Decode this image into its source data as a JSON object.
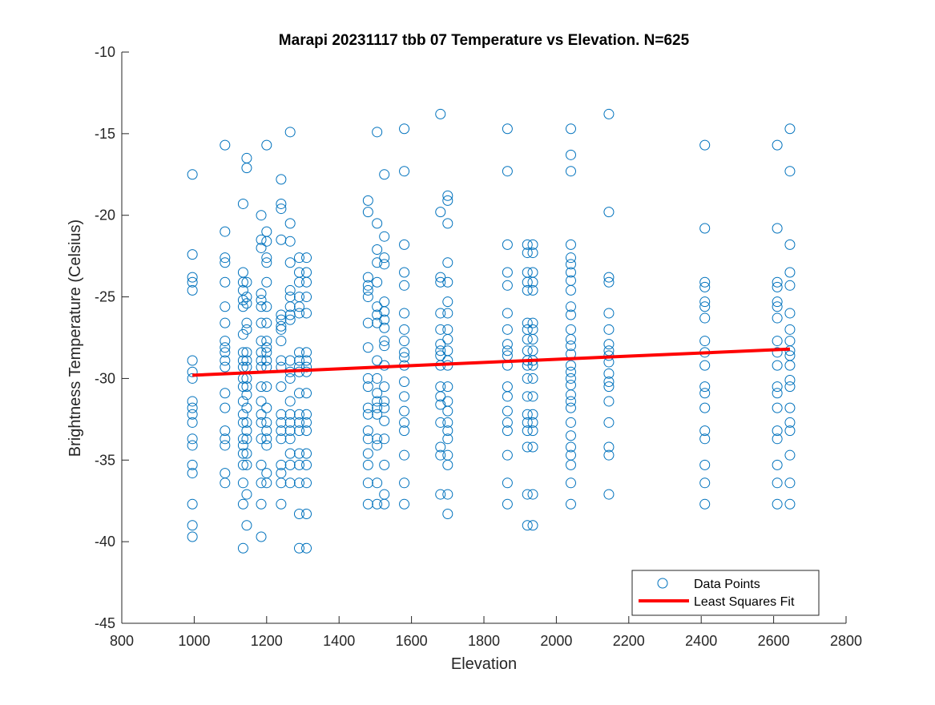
{
  "chart_data": {
    "type": "scatter",
    "title": "Marapi 20231117 tbb 07 Temperature vs Elevation. N=625",
    "xlabel": "Elevation",
    "ylabel": "Brightness Temperature (Celsius)",
    "xlim": [
      800,
      2800
    ],
    "ylim": [
      -45,
      -10
    ],
    "xticks": [
      800,
      1000,
      1200,
      1400,
      1600,
      1800,
      2000,
      2200,
      2400,
      2600,
      2800
    ],
    "yticks": [
      -45,
      -40,
      -35,
      -30,
      -25,
      -20,
      -15,
      -10
    ],
    "grid": false,
    "legend_position": "bottom-right",
    "colors": {
      "points": "#0072BD",
      "fit": "#FF0000"
    },
    "series": [
      {
        "name": "Data Points",
        "kind": "scatter",
        "columns": [
          {
            "x": 995,
            "y": [
              -17.5,
              -22.4,
              -23.8,
              -24.1,
              -24.6,
              -28.9,
              -29.6,
              -30.0,
              -31.4,
              -31.8,
              -32.2,
              -32.7,
              -33.7,
              -34.1,
              -35.3,
              -35.8,
              -37.7,
              -39.0,
              -39.7
            ]
          },
          {
            "x": 1085,
            "y": [
              -15.7,
              -21.0,
              -22.6,
              -22.9,
              -24.1,
              -25.6,
              -26.6,
              -27.7,
              -28.1,
              -28.4,
              -28.9,
              -29.3,
              -30.9,
              -31.8,
              -33.2,
              -33.7,
              -34.1,
              -35.8,
              -36.4
            ]
          },
          {
            "x": 1135,
            "y": [
              -19.3,
              -23.5,
              -24.1,
              -24.6,
              -25.2,
              -25.6,
              -27.3,
              -28.4,
              -28.9,
              -29.3,
              -30.0,
              -30.5,
              -31.4,
              -32.2,
              -32.7,
              -33.7,
              -34.1,
              -34.6,
              -35.3,
              -36.4,
              -37.7,
              -40.4
            ]
          },
          {
            "x": 1145,
            "y": [
              -16.5,
              -17.1,
              -24.1,
              -25.0,
              -25.4,
              -26.6,
              -27.0,
              -28.4,
              -28.9,
              -29.3,
              -30.0,
              -30.5,
              -31.0,
              -31.8,
              -32.7,
              -33.2,
              -33.7,
              -34.6,
              -35.3,
              -37.1,
              -39.0
            ]
          },
          {
            "x": 1185,
            "y": [
              -20.0,
              -21.5,
              -22.0,
              -24.8,
              -25.2,
              -25.6,
              -26.6,
              -27.7,
              -28.4,
              -28.9,
              -29.3,
              -30.5,
              -31.4,
              -32.2,
              -32.7,
              -33.7,
              -35.3,
              -36.4,
              -37.7,
              -39.7
            ]
          },
          {
            "x": 1200,
            "y": [
              -15.7,
              -21.0,
              -21.6,
              -22.6,
              -22.9,
              -24.1,
              -25.6,
              -26.6,
              -27.7,
              -28.1,
              -28.4,
              -28.9,
              -29.3,
              -30.5,
              -31.8,
              -32.7,
              -33.2,
              -33.7,
              -34.1,
              -35.8,
              -36.4
            ]
          },
          {
            "x": 1240,
            "y": [
              -17.8,
              -19.3,
              -19.6,
              -21.5,
              -26.1,
              -26.4,
              -26.8,
              -27.0,
              -27.7,
              -28.9,
              -29.3,
              -30.5,
              -32.2,
              -32.7,
              -33.2,
              -33.7,
              -35.3,
              -35.8,
              -36.4,
              -37.7
            ]
          },
          {
            "x": 1265,
            "y": [
              -14.9,
              -20.5,
              -21.6,
              -22.9,
              -24.6,
              -25.0,
              -25.6,
              -26.1,
              -26.4,
              -28.9,
              -29.6,
              -30.0,
              -31.4,
              -32.2,
              -32.7,
              -33.2,
              -33.7,
              -34.6,
              -35.3,
              -36.4
            ]
          },
          {
            "x": 1290,
            "y": [
              -22.6,
              -23.5,
              -24.1,
              -25.0,
              -25.6,
              -26.0,
              -28.4,
              -28.9,
              -29.3,
              -29.6,
              -30.9,
              -32.2,
              -32.7,
              -33.2,
              -34.6,
              -35.3,
              -36.4,
              -38.3,
              -40.4
            ]
          },
          {
            "x": 1310,
            "y": [
              -22.6,
              -23.5,
              -24.1,
              -25.0,
              -26.0,
              -28.4,
              -28.9,
              -29.3,
              -29.6,
              -30.9,
              -32.2,
              -32.7,
              -33.2,
              -34.6,
              -35.3,
              -36.4,
              -38.3,
              -40.4
            ]
          },
          {
            "x": 1480,
            "y": [
              -19.1,
              -19.8,
              -23.8,
              -24.3,
              -24.6,
              -25.0,
              -26.6,
              -28.1,
              -30.0,
              -30.5,
              -31.8,
              -32.2,
              -33.2,
              -33.7,
              -34.6,
              -35.3,
              -36.4,
              -37.7
            ]
          },
          {
            "x": 1505,
            "y": [
              -14.9,
              -20.5,
              -22.1,
              -22.9,
              -24.1,
              -25.6,
              -26.1,
              -26.6,
              -28.9,
              -30.0,
              -30.9,
              -31.4,
              -31.8,
              -32.2,
              -33.7,
              -34.1,
              -36.4,
              -37.7
            ]
          },
          {
            "x": 1525,
            "y": [
              -17.5,
              -21.3,
              -22.6,
              -23.0,
              -25.3,
              -25.9,
              -26.4,
              -26.9,
              -27.7,
              -28.0,
              -29.2,
              -30.5,
              -31.4,
              -31.8,
              -32.6,
              -33.7,
              -35.3,
              -37.1,
              -37.7
            ]
          },
          {
            "x": 1580,
            "y": [
              -14.7,
              -17.3,
              -21.8,
              -23.5,
              -24.3,
              -26.0,
              -27.0,
              -27.7,
              -28.4,
              -28.7,
              -29.2,
              -30.2,
              -31.1,
              -32.0,
              -32.7,
              -33.2,
              -34.7,
              -36.4,
              -37.7
            ]
          },
          {
            "x": 1680,
            "y": [
              -13.8,
              -19.8,
              -23.8,
              -24.1,
              -26.0,
              -27.0,
              -27.9,
              -28.3,
              -28.6,
              -29.2,
              -30.5,
              -31.1,
              -31.6,
              -32.7,
              -34.2,
              -34.7,
              -37.1
            ]
          },
          {
            "x": 1700,
            "y": [
              -18.8,
              -19.1,
              -20.5,
              -22.9,
              -24.1,
              -25.3,
              -26.0,
              -27.0,
              -27.6,
              -28.3,
              -28.9,
              -29.2,
              -30.5,
              -31.4,
              -32.0,
              -32.7,
              -33.2,
              -33.7,
              -34.7,
              -35.3,
              -37.1,
              -38.3
            ]
          },
          {
            "x": 1865,
            "y": [
              -14.7,
              -17.3,
              -21.8,
              -23.5,
              -24.3,
              -26.0,
              -27.0,
              -27.9,
              -28.3,
              -28.6,
              -29.2,
              -30.5,
              -31.1,
              -32.0,
              -32.7,
              -33.2,
              -34.7,
              -36.4,
              -37.7
            ]
          },
          {
            "x": 1920,
            "y": [
              -21.8,
              -22.3,
              -23.5,
              -24.1,
              -24.6,
              -26.6,
              -27.0,
              -27.6,
              -28.3,
              -28.9,
              -29.2,
              -30.0,
              -31.1,
              -32.2,
              -32.7,
              -33.2,
              -34.2,
              -37.1,
              -39.0
            ]
          },
          {
            "x": 1935,
            "y": [
              -21.8,
              -22.3,
              -23.5,
              -24.1,
              -24.6,
              -26.6,
              -27.0,
              -27.6,
              -28.3,
              -28.9,
              -29.2,
              -30.0,
              -31.1,
              -32.2,
              -32.7,
              -33.2,
              -34.2,
              -37.1,
              -39.0
            ]
          },
          {
            "x": 2040,
            "y": [
              -14.7,
              -16.3,
              -17.3,
              -21.8,
              -22.6,
              -23.0,
              -23.5,
              -24.0,
              -24.6,
              -25.6,
              -26.1,
              -27.0,
              -27.6,
              -28.0,
              -28.5,
              -29.2,
              -29.6,
              -30.0,
              -30.4,
              -31.0,
              -31.4,
              -31.8,
              -32.7,
              -33.5,
              -34.2,
              -34.7,
              -35.3,
              -36.4,
              -37.7
            ]
          },
          {
            "x": 2145,
            "y": [
              -13.8,
              -19.8,
              -23.8,
              -24.1,
              -26.0,
              -27.0,
              -27.9,
              -28.3,
              -28.6,
              -29.0,
              -29.7,
              -30.2,
              -30.5,
              -31.4,
              -32.7,
              -34.2,
              -34.7,
              -37.1
            ]
          },
          {
            "x": 2410,
            "y": [
              -15.7,
              -20.8,
              -24.1,
              -24.4,
              -25.3,
              -25.6,
              -26.3,
              -27.7,
              -28.4,
              -29.2,
              -30.5,
              -30.9,
              -31.8,
              -33.2,
              -33.7,
              -35.3,
              -36.4,
              -37.7
            ]
          },
          {
            "x": 2610,
            "y": [
              -15.7,
              -20.8,
              -24.1,
              -24.4,
              -25.3,
              -25.6,
              -26.3,
              -27.7,
              -28.4,
              -29.2,
              -30.5,
              -30.9,
              -31.8,
              -33.2,
              -33.7,
              -35.3,
              -36.4,
              -37.7
            ]
          },
          {
            "x": 2645,
            "y": [
              -14.7,
              -17.3,
              -21.8,
              -23.5,
              -24.3,
              -26.0,
              -27.0,
              -27.7,
              -28.3,
              -28.6,
              -29.2,
              -30.1,
              -30.5,
              -31.8,
              -32.7,
              -33.2,
              -34.7,
              -36.4,
              -37.7
            ]
          }
        ]
      },
      {
        "name": "Least Squares Fit",
        "kind": "line",
        "x": [
          995,
          2645
        ],
        "y": [
          -29.8,
          -28.2
        ]
      }
    ]
  }
}
